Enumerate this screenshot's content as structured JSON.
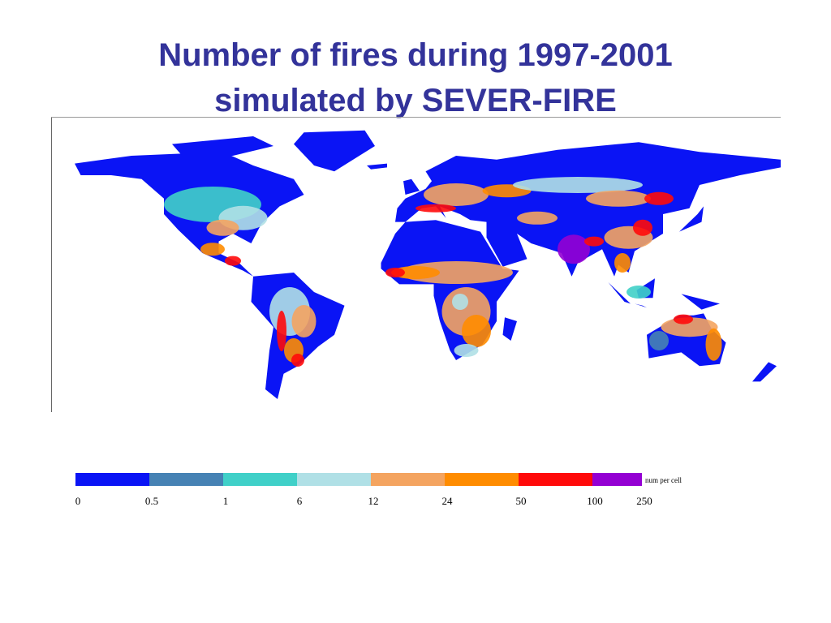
{
  "title": [
    "Number of fires during 1997-2001",
    "simulated by SEVER-FIRE"
  ],
  "legend": {
    "unit": "num per cell",
    "ticks": [
      0,
      0.5,
      1,
      6,
      12,
      24,
      50,
      100,
      250
    ],
    "colors": [
      "#0a14f5",
      "#4682b4",
      "#40d0c8",
      "#b0e0e6",
      "#f4a460",
      "#ff8c00",
      "#ff0a0a",
      "#9400d3"
    ]
  }
}
